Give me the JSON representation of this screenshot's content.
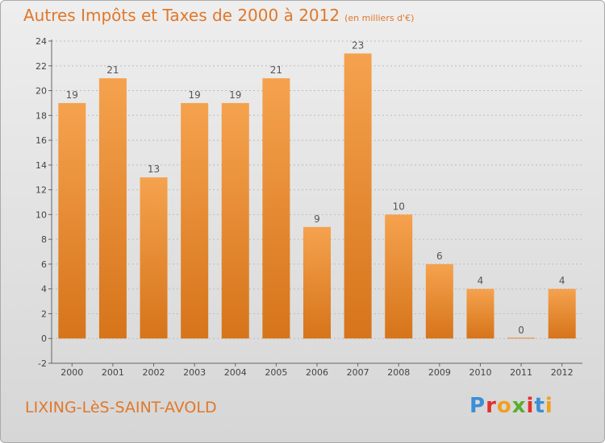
{
  "title": "Autres Impôts et Taxes de 2000 à 2012",
  "unit": "(en milliers d'€)",
  "commune": "LIXING-LèS-SAINT-AVOLD",
  "logo": {
    "letters": [
      "P",
      "r",
      "o",
      "x",
      "i",
      "t",
      "i"
    ],
    "colors": [
      "#3a8fd8",
      "#e2302b",
      "#f0a020",
      "#5aae2e",
      "#e2302b",
      "#3a8fd8",
      "#f0a020"
    ]
  },
  "colors": {
    "title": "#e0782a",
    "bar_light": "#f5a24e",
    "bar_dark": "#d6741a"
  },
  "chart_data": {
    "type": "bar",
    "categories": [
      "2000",
      "2001",
      "2002",
      "2003",
      "2004",
      "2005",
      "2006",
      "2007",
      "2008",
      "2009",
      "2010",
      "2011",
      "2012"
    ],
    "values": [
      19,
      21,
      13,
      19,
      19,
      21,
      9,
      23,
      10,
      6,
      4,
      0,
      4
    ],
    "ylim": [
      -2,
      24
    ],
    "yticks": [
      -2,
      0,
      2,
      4,
      6,
      8,
      10,
      12,
      14,
      16,
      18,
      20,
      22,
      24
    ],
    "grid": true
  }
}
